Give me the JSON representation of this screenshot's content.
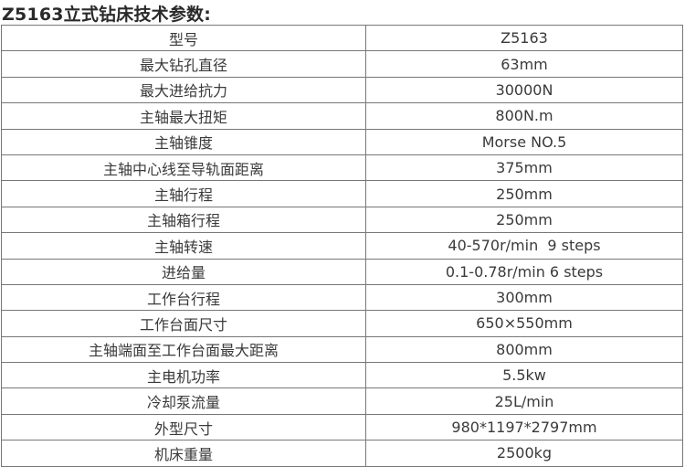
{
  "title": "Z5163立式钻床技术参数:",
  "rows": [
    {
      "label": "型号",
      "value": "Z5163"
    },
    {
      "label": "最大钻孔直径",
      "value": "63mm"
    },
    {
      "label": "最大进给抗力",
      "value": "30000N"
    },
    {
      "label": "主轴最大扭矩",
      "value": "800N.m"
    },
    {
      "label": "主轴锥度",
      "value": "Morse NO.5"
    },
    {
      "label": "主轴中心线至导轨面距离",
      "value": "375mm"
    },
    {
      "label": "主轴行程",
      "value": "250mm"
    },
    {
      "label": "主轴箱行程",
      "value": "250mm"
    },
    {
      "label": "主轴转速",
      "value": "40-570r/min  9 steps"
    },
    {
      "label": "进给量",
      "value": "0.1-0.78r/min 6 steps"
    },
    {
      "label": "工作台行程",
      "value": "300mm"
    },
    {
      "label": "工作台面尺寸",
      "value": "650×550mm"
    },
    {
      "label": "主轴端面至工作台面最大距离",
      "value": "800mm"
    },
    {
      "label": "主电机功率",
      "value": "5.5kw"
    },
    {
      "label": "冷却泵流量",
      "value": "25L/min"
    },
    {
      "label": "外型尺寸",
      "value": "980*1197*2797mm"
    },
    {
      "label": "机床重量",
      "value": "2500kg"
    }
  ]
}
